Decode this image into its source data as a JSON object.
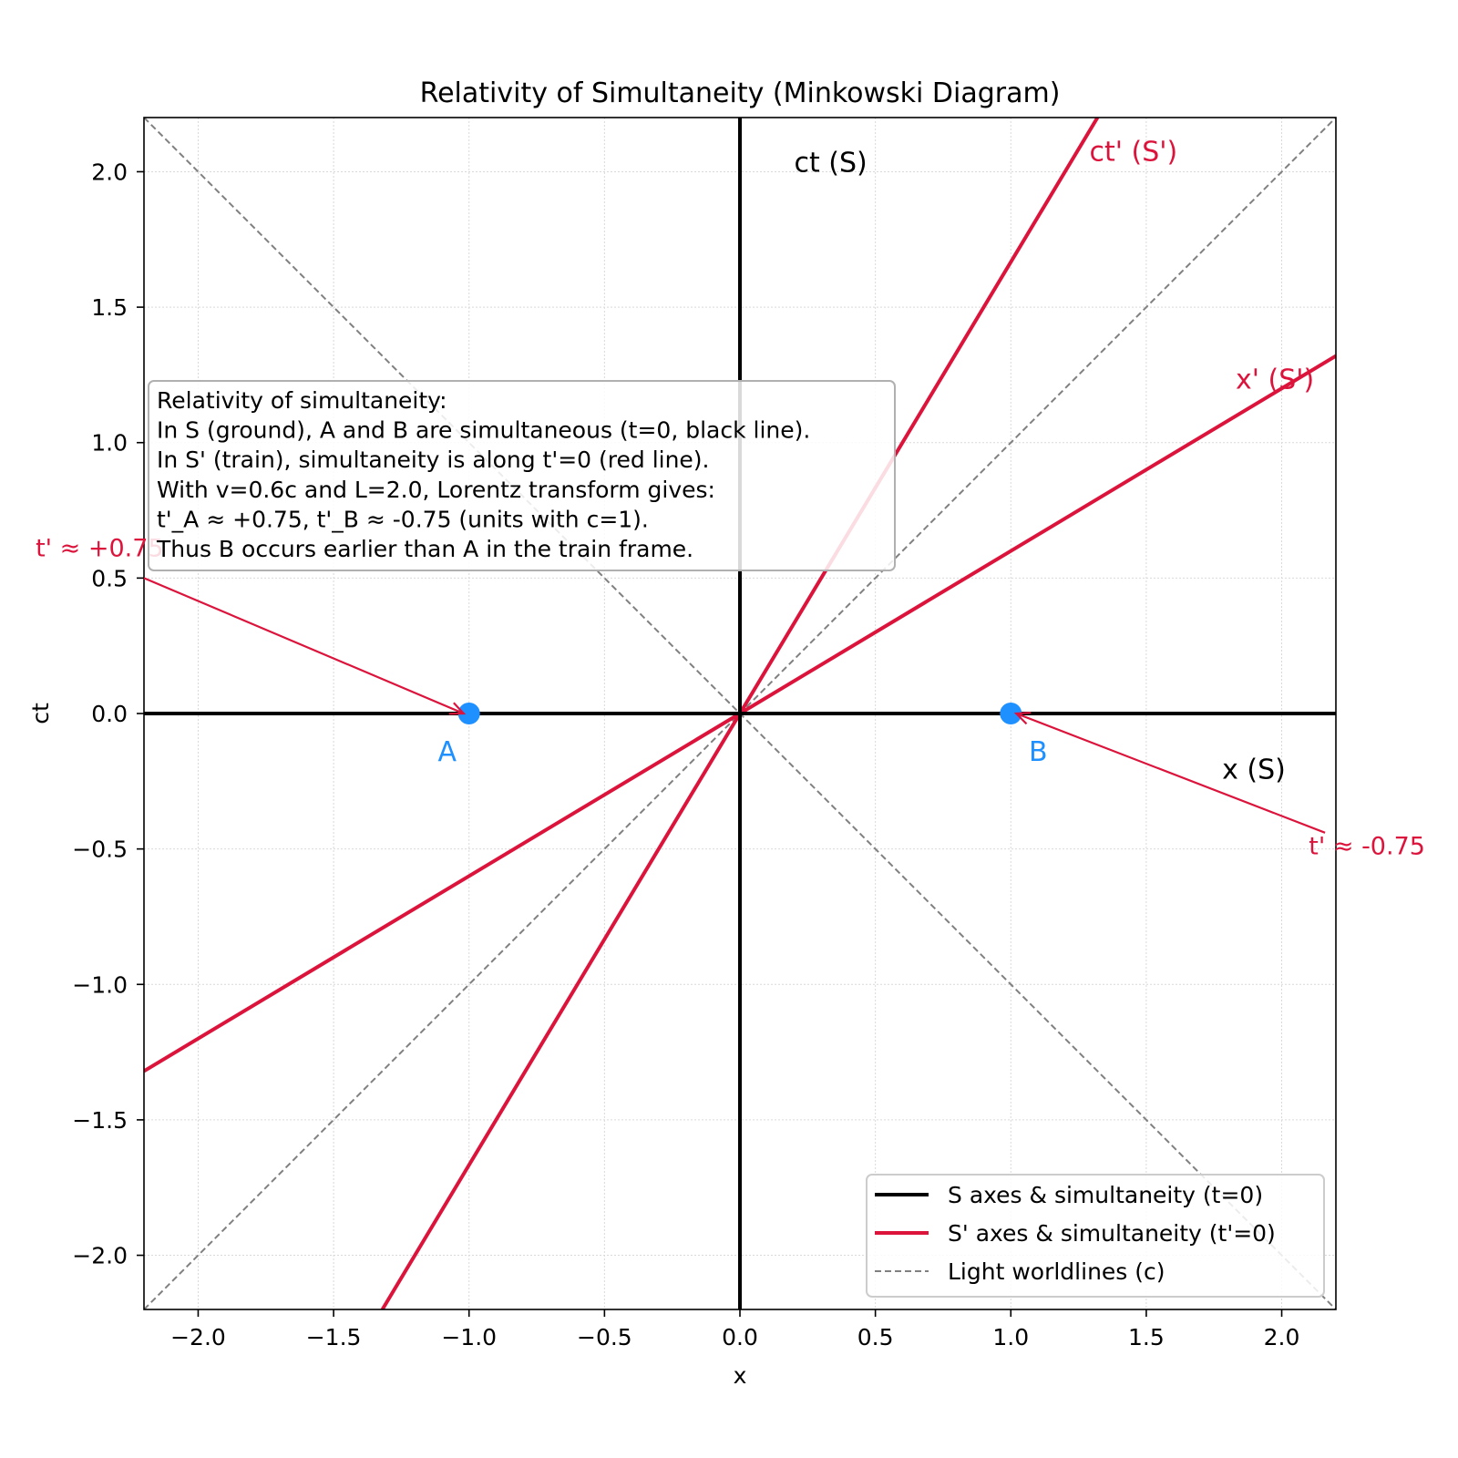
{
  "chart_data": {
    "type": "line",
    "title": "Relativity of Simultaneity (Minkowski Diagram)",
    "xlabel": "x",
    "ylabel": "ct",
    "xlim": [
      -2.2,
      2.2
    ],
    "ylim": [
      -2.2,
      2.2
    ],
    "grid": true,
    "x_ticks": [
      -2.0,
      -1.5,
      -1.0,
      -0.5,
      0.0,
      0.5,
      1.0,
      1.5,
      2.0
    ],
    "y_ticks": [
      -2.0,
      -1.5,
      -1.0,
      -0.5,
      0.0,
      0.5,
      1.0,
      1.5,
      2.0
    ],
    "x_tick_labels": [
      "−2.0",
      "−1.5",
      "−1.0",
      "−0.5",
      "0.0",
      "0.5",
      "1.0",
      "1.5",
      "2.0"
    ],
    "y_tick_labels": [
      "−2.0",
      "−1.5",
      "−1.0",
      "−0.5",
      "0.0",
      "0.5",
      "1.0",
      "1.5",
      "2.0"
    ],
    "series": [
      {
        "name": "S axes & simultaneity (t=0)",
        "color": "#000000",
        "style": "solid",
        "lines": [
          [
            [
              -2.2,
              0
            ],
            [
              2.2,
              0
            ]
          ],
          [
            [
              0,
              -2.2
            ],
            [
              0,
              2.2
            ]
          ]
        ]
      },
      {
        "name": "S' axes & simultaneity (t'=0)",
        "color": "#dc143c",
        "style": "solid",
        "lines": [
          [
            [
              -1.32,
              -2.2
            ],
            [
              1.32,
              2.2
            ]
          ],
          [
            [
              -2.2,
              -1.32
            ],
            [
              2.2,
              1.32
            ]
          ]
        ]
      },
      {
        "name": "Light worldlines (c)",
        "color": "#808080",
        "style": "dashed",
        "lines": [
          [
            [
              -2.2,
              -2.2
            ],
            [
              2.2,
              2.2
            ]
          ],
          [
            [
              -2.2,
              2.2
            ],
            [
              2.2,
              -2.2
            ]
          ]
        ]
      }
    ],
    "events": [
      {
        "label": "A",
        "x": -1.0,
        "y": 0.0,
        "color": "#1e90ff"
      },
      {
        "label": "B",
        "x": 1.0,
        "y": 0.0,
        "color": "#1e90ff"
      }
    ],
    "axis_labels": [
      {
        "text": "ct (S)",
        "x": 0.2,
        "y": 2.0,
        "color": "#000000"
      },
      {
        "text": "x (S)",
        "x": 1.78,
        "y": -0.24,
        "color": "#000000"
      },
      {
        "text": "ct' (S')",
        "x": 1.29,
        "y": 2.04,
        "color": "#dc143c"
      },
      {
        "text": "x' (S')",
        "x": 1.83,
        "y": 1.2,
        "color": "#dc143c"
      }
    ],
    "annotations": [
      {
        "text": "t' ≈ +0.75",
        "text_x": -2.6,
        "text_y": 0.58,
        "arrow_from": [
          -2.2,
          0.5
        ],
        "arrow_to": [
          -1.02,
          0.0
        ],
        "color": "#dc143c"
      },
      {
        "text": "t' ≈ -0.75",
        "text_x": 2.1,
        "text_y": -0.52,
        "arrow_from": [
          2.16,
          -0.44
        ],
        "arrow_to": [
          1.02,
          0.0
        ],
        "color": "#dc143c"
      }
    ],
    "info_box": {
      "lines": [
        "Relativity of simultaneity:",
        "In S (ground), A and B are simultaneous (t=0, black line).",
        "In S' (train), simultaneity is along t'=0 (red line).",
        "With v=0.6c and L=2.0, Lorentz transform gives:",
        "t'_A ≈ +0.75, t'_B ≈ -0.75 (units with c=1).",
        "Thus B occurs earlier than A in the train frame."
      ]
    },
    "legend": {
      "placement": "lower-right",
      "entries": [
        {
          "label": "S axes & simultaneity (t=0)",
          "color": "#000000",
          "style": "solid"
        },
        {
          "label": "S' axes & simultaneity (t'=0)",
          "color": "#dc143c",
          "style": "solid"
        },
        {
          "label": "Light worldlines (c)",
          "color": "#808080",
          "style": "dashed"
        }
      ]
    }
  }
}
